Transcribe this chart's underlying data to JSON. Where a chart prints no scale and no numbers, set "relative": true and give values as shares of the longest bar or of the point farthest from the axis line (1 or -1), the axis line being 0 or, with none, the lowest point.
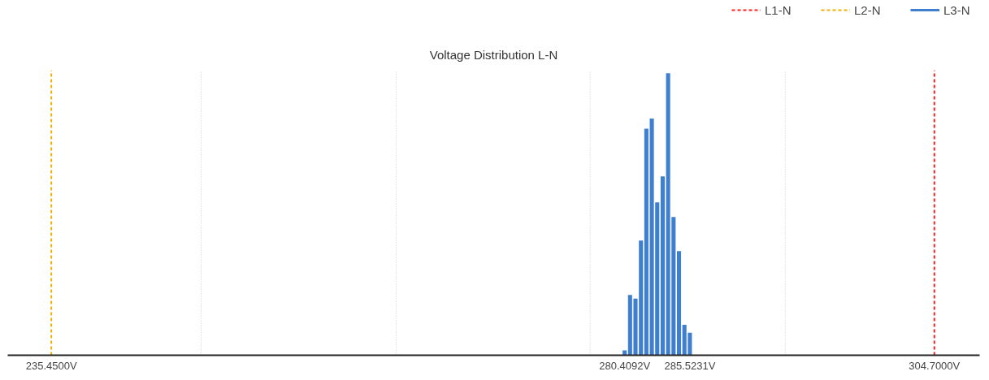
{
  "chart_data": {
    "type": "bar",
    "title": "Voltage Distribution L-N",
    "relative": true,
    "x": [
      280.409,
      280.835,
      281.261,
      281.688,
      282.114,
      282.54,
      282.966,
      283.392,
      283.818,
      284.244,
      284.671,
      285.097,
      285.523
    ],
    "series": [
      {
        "name": "L3-N",
        "color": "#3f7fcf",
        "values": [
          0.017,
          0.214,
          0.201,
          0.407,
          0.803,
          0.839,
          0.542,
          0.634,
          1,
          0.49,
          0.369,
          0.108,
          0.08
        ]
      }
    ],
    "xlim": [
      232.03,
      308.25
    ],
    "xticks": [
      {
        "value": 235.45,
        "label": "235.4500V"
      },
      {
        "value": 280.4092,
        "label": "280.4092V"
      },
      {
        "value": 285.5231,
        "label": "285.5231V"
      },
      {
        "value": 304.7,
        "label": "304.7000V"
      }
    ],
    "ref_lines": [
      {
        "axis": "x",
        "value": 304.7,
        "label": "L1-N",
        "color": "#ff2020",
        "line_style": "dashed"
      },
      {
        "axis": "x",
        "value": 235.45,
        "label": "L2-N",
        "color": "#f0b000",
        "line_style": "dashed"
      },
      {
        "axis": "x",
        "value": 247.2,
        "color": "#c8c8c8",
        "line_style": "dotted"
      },
      {
        "axis": "x",
        "value": 262.5,
        "color": "#c8c8c8",
        "line_style": "dotted"
      },
      {
        "axis": "x",
        "value": 277.7,
        "color": "#c8c8c8",
        "line_style": "dotted"
      },
      {
        "axis": "x",
        "value": 293.0,
        "color": "#c8c8c8",
        "line_style": "dotted"
      }
    ],
    "legend": "top right"
  }
}
